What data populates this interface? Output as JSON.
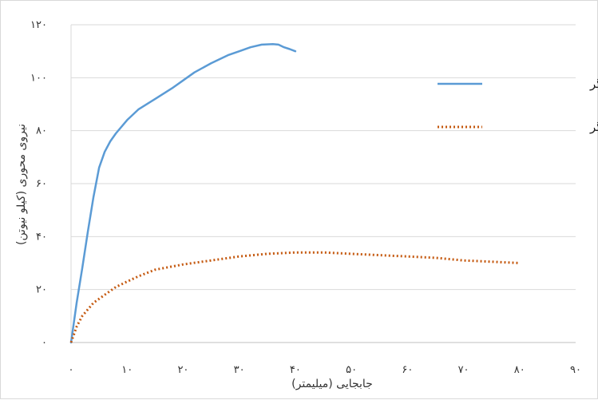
{
  "chart_data": {
    "type": "line",
    "xlabel": "جابجایی (میلیمتر)",
    "ylabel": "نیروی محوری (کیلو نیوتن)",
    "xlim": [
      0,
      90
    ],
    "ylim": [
      0,
      120
    ],
    "x_ticks": [
      0,
      10,
      20,
      30,
      40,
      50,
      60,
      70,
      80,
      90
    ],
    "x_tick_labels": [
      "۰",
      "۱۰",
      "۲۰",
      "۳۰",
      "۴۰",
      "۵۰",
      "۶۰",
      "۷۰",
      "۸۰",
      "۹۰"
    ],
    "y_ticks": [
      0,
      20,
      40,
      60,
      80,
      100,
      120
    ],
    "y_tick_labels": [
      "۰",
      "۲۰",
      "۴۰",
      "۶۰",
      "۸۰",
      "۱۰۰",
      "۱۲۰"
    ],
    "grid": "horizontal",
    "legend_position": "right",
    "series": [
      {
        "name": "نمونه دارای میراگر",
        "color": "#5b9bd5",
        "style": "solid",
        "x": [
          0,
          1,
          2,
          3,
          4,
          5,
          6,
          7,
          8,
          10,
          12,
          15,
          18,
          20,
          22,
          25,
          28,
          30,
          32,
          34,
          36,
          37,
          38,
          39,
          40
        ],
        "y": [
          0,
          15,
          28,
          42,
          55,
          66,
          72,
          76,
          79,
          84,
          88,
          92,
          96,
          99,
          102,
          105.5,
          108.5,
          110,
          111.5,
          112.5,
          112.7,
          112.5,
          111.5,
          110.8,
          110
        ]
      },
      {
        "name": "نمونه بدون میراگر",
        "color": "#c55a11",
        "style": "dotted",
        "x": [
          0,
          1,
          2,
          4,
          6,
          8,
          10,
          12,
          15,
          20,
          25,
          30,
          35,
          40,
          45,
          50,
          55,
          60,
          65,
          70,
          75,
          80
        ],
        "y": [
          0,
          6,
          10,
          15,
          18,
          21,
          23,
          25,
          27.5,
          29.5,
          31,
          32.5,
          33.5,
          34,
          34,
          33.5,
          33,
          32.5,
          32,
          31,
          30.5,
          30
        ]
      }
    ]
  }
}
